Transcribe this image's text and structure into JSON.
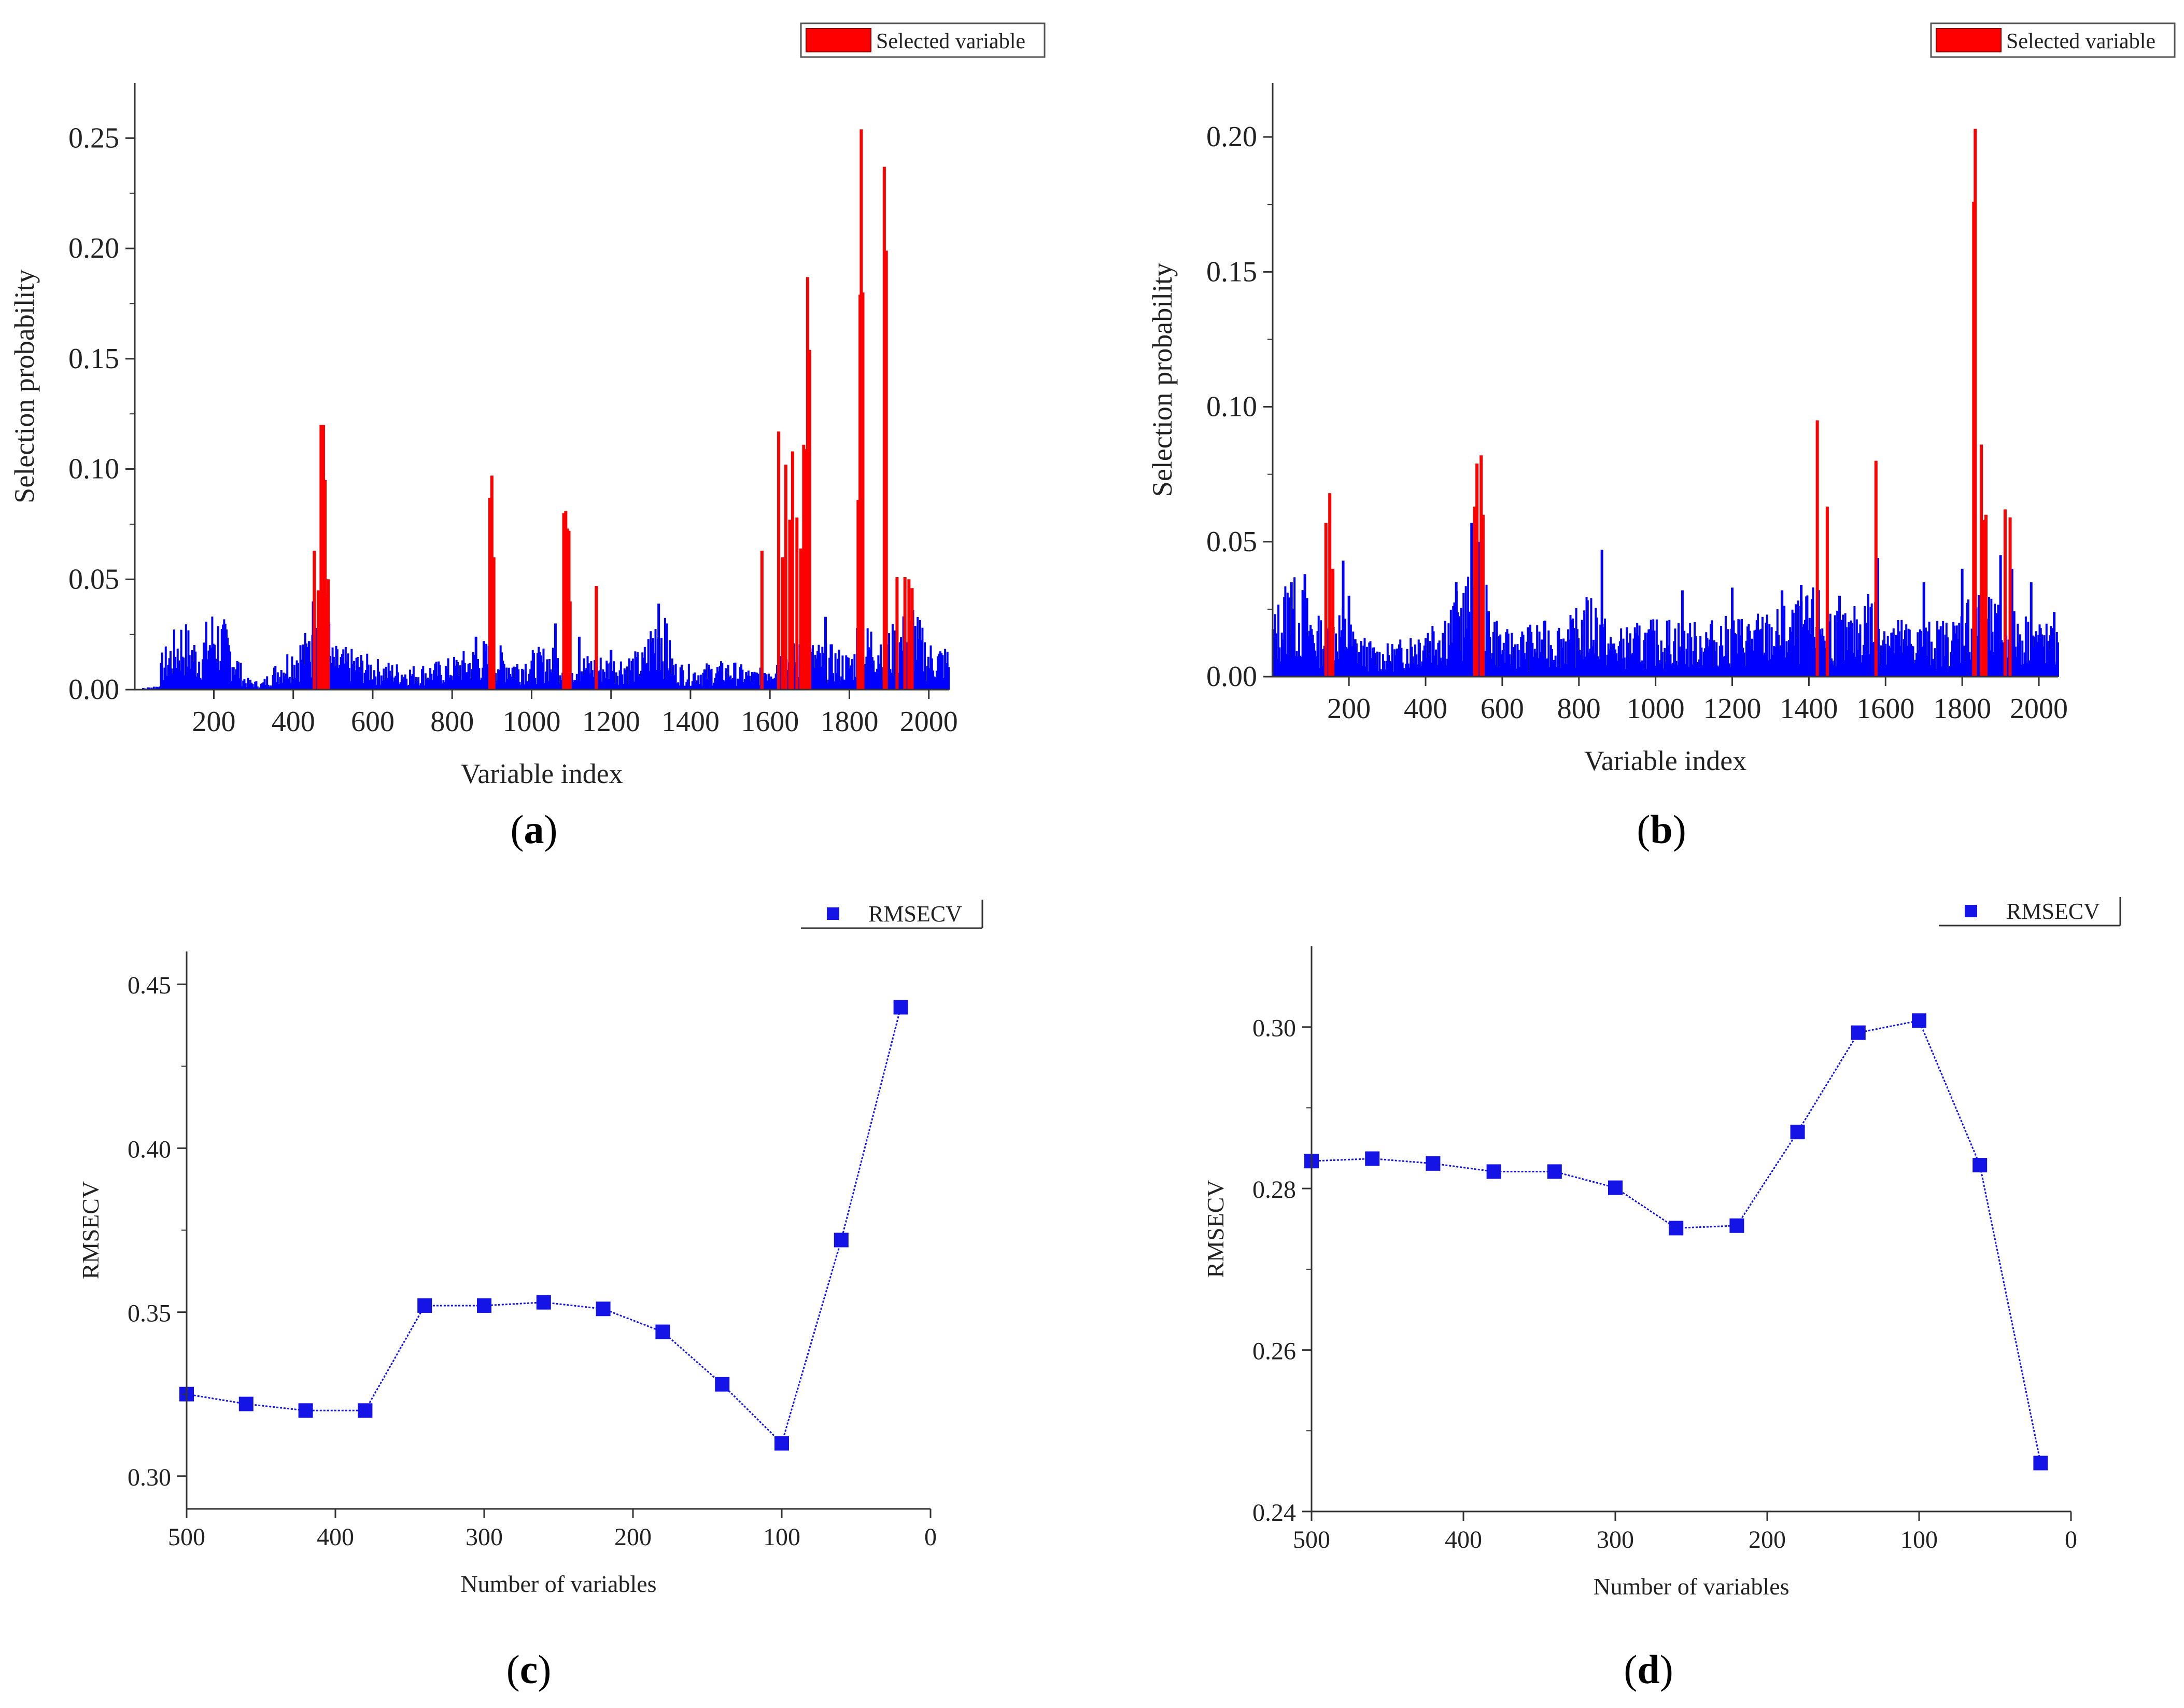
{
  "colors": {
    "base": "#0000ff",
    "selected": "#ff0000",
    "axis": "#333333",
    "marker": "#1414e6",
    "line": "#1414e6"
  },
  "panels": {
    "a": {
      "caption_open": "(",
      "caption_letter": "a",
      "caption_close": ")"
    },
    "b": {
      "caption_open": "(",
      "caption_letter": "b",
      "caption_close": ")"
    },
    "c": {
      "caption_open": "(",
      "caption_letter": "c",
      "caption_close": ")"
    },
    "d": {
      "caption_open": "(",
      "caption_letter": "d",
      "caption_close": ")"
    }
  },
  "chart_data": [
    {
      "id": "a",
      "type": "bar",
      "xlabel": "Variable index",
      "ylabel": "Selection probability",
      "legend": {
        "label": "Selected variable",
        "placement": "top-right"
      },
      "xlim": [
        1,
        2050
      ],
      "ylim": [
        0,
        0.275
      ],
      "xticks": [
        200,
        400,
        600,
        800,
        1000,
        1200,
        1400,
        1600,
        1800,
        2000
      ],
      "yticks": [
        0.0,
        0.05,
        0.1,
        0.15,
        0.2,
        0.25
      ],
      "ytick_labels": [
        "0.00",
        "0.05",
        "0.10",
        "0.15",
        "0.20",
        "0.25"
      ],
      "background_segments": [
        [
          1,
          0.0
        ],
        [
          60,
          0.002
        ],
        [
          70,
          0.015
        ],
        [
          120,
          0.03
        ],
        [
          160,
          0.02
        ],
        [
          200,
          0.035
        ],
        [
          240,
          0.025
        ],
        [
          280,
          0.005
        ],
        [
          320,
          0.003
        ],
        [
          360,
          0.012
        ],
        [
          400,
          0.02
        ],
        [
          440,
          0.025
        ],
        [
          500,
          0.018
        ],
        [
          560,
          0.016
        ],
        [
          620,
          0.012
        ],
        [
          700,
          0.01
        ],
        [
          780,
          0.012
        ],
        [
          860,
          0.018
        ],
        [
          900,
          0.02
        ],
        [
          960,
          0.014
        ],
        [
          1040,
          0.018
        ],
        [
          1100,
          0.015
        ],
        [
          1200,
          0.014
        ],
        [
          1280,
          0.016
        ],
        [
          1320,
          0.04
        ],
        [
          1360,
          0.012
        ],
        [
          1400,
          0.01
        ],
        [
          1500,
          0.012
        ],
        [
          1560,
          0.008
        ],
        [
          1620,
          0.018
        ],
        [
          1700,
          0.02
        ],
        [
          1760,
          0.018
        ],
        [
          1800,
          0.015
        ],
        [
          1860,
          0.03
        ],
        [
          1900,
          0.025
        ],
        [
          1960,
          0.035
        ],
        [
          2000,
          0.02
        ],
        [
          2050,
          0.018
        ]
      ],
      "spikes": [
        [
          440,
          0.022
        ],
        [
          450,
          0.04
        ],
        [
          460,
          0.028
        ],
        [
          470,
          0.036
        ],
        [
          480,
          0.024
        ],
        [
          490,
          0.03
        ],
        [
          860,
          0.024
        ],
        [
          880,
          0.022
        ],
        [
          1060,
          0.03
        ],
        [
          1120,
          0.024
        ],
        [
          1200,
          0.018
        ],
        [
          1320,
          0.039
        ],
        [
          1340,
          0.03
        ],
        [
          1640,
          0.058
        ],
        [
          1700,
          0.03
        ],
        [
          1740,
          0.033
        ],
        [
          1820,
          0.028
        ],
        [
          1920,
          0.035
        ],
        [
          1960,
          0.036
        ]
      ],
      "selected": [
        [
          453,
          0.063
        ],
        [
          463,
          0.045
        ],
        [
          470,
          0.12
        ],
        [
          476,
          0.12
        ],
        [
          480,
          0.095
        ],
        [
          485,
          0.043
        ],
        [
          488,
          0.05
        ],
        [
          895,
          0.087
        ],
        [
          900,
          0.097
        ],
        [
          905,
          0.06
        ],
        [
          1081,
          0.08
        ],
        [
          1086,
          0.081
        ],
        [
          1090,
          0.073
        ],
        [
          1094,
          0.072
        ],
        [
          1097,
          0.04
        ],
        [
          1163,
          0.047
        ],
        [
          1580,
          0.063
        ],
        [
          1622,
          0.117
        ],
        [
          1632,
          0.06
        ],
        [
          1640,
          0.102
        ],
        [
          1650,
          0.077
        ],
        [
          1657,
          0.108
        ],
        [
          1668,
          0.078
        ],
        [
          1678,
          0.064
        ],
        [
          1685,
          0.111
        ],
        [
          1690,
          0.109
        ],
        [
          1695,
          0.187
        ],
        [
          1700,
          0.154
        ],
        [
          1822,
          0.086
        ],
        [
          1827,
          0.179
        ],
        [
          1830,
          0.254
        ],
        [
          1834,
          0.18
        ],
        [
          1888,
          0.237
        ],
        [
          1893,
          0.199
        ],
        [
          1920,
          0.051
        ],
        [
          1940,
          0.051
        ],
        [
          1950,
          0.05
        ],
        [
          1958,
          0.046
        ]
      ]
    },
    {
      "id": "b",
      "type": "bar",
      "xlabel": "Variable index",
      "ylabel": "Selection probability",
      "legend": {
        "label": "Selected variable",
        "placement": "top-right"
      },
      "xlim": [
        1,
        2050
      ],
      "ylim": [
        0,
        0.22
      ],
      "xticks": [
        200,
        400,
        600,
        800,
        1000,
        1200,
        1400,
        1600,
        1800,
        2000
      ],
      "yticks": [
        0.0,
        0.05,
        0.1,
        0.15,
        0.2
      ],
      "ytick_labels": [
        "0.00",
        "0.05",
        "0.10",
        "0.15",
        "0.20"
      ],
      "background_segments": [
        [
          1,
          0.02
        ],
        [
          40,
          0.035
        ],
        [
          80,
          0.03
        ],
        [
          120,
          0.02
        ],
        [
          180,
          0.025
        ],
        [
          220,
          0.015
        ],
        [
          280,
          0.01
        ],
        [
          330,
          0.012
        ],
        [
          400,
          0.02
        ],
        [
          460,
          0.025
        ],
        [
          520,
          0.035
        ],
        [
          560,
          0.03
        ],
        [
          600,
          0.015
        ],
        [
          700,
          0.018
        ],
        [
          780,
          0.02
        ],
        [
          840,
          0.03
        ],
        [
          880,
          0.015
        ],
        [
          960,
          0.018
        ],
        [
          1040,
          0.02
        ],
        [
          1100,
          0.018
        ],
        [
          1200,
          0.02
        ],
        [
          1300,
          0.022
        ],
        [
          1380,
          0.025
        ],
        [
          1420,
          0.03
        ],
        [
          1500,
          0.02
        ],
        [
          1560,
          0.03
        ],
        [
          1620,
          0.02
        ],
        [
          1700,
          0.018
        ],
        [
          1780,
          0.02
        ],
        [
          1820,
          0.03
        ],
        [
          1880,
          0.025
        ],
        [
          1940,
          0.022
        ],
        [
          2000,
          0.02
        ],
        [
          2050,
          0.015
        ]
      ],
      "spikes": [
        [
          50,
          0.035
        ],
        [
          85,
          0.038
        ],
        [
          185,
          0.043
        ],
        [
          200,
          0.03
        ],
        [
          480,
          0.035
        ],
        [
          520,
          0.057
        ],
        [
          540,
          0.05
        ],
        [
          860,
          0.047
        ],
        [
          1070,
          0.032
        ],
        [
          1200,
          0.033
        ],
        [
          1330,
          0.032
        ],
        [
          1380,
          0.034
        ],
        [
          1480,
          0.03
        ],
        [
          1580,
          0.044
        ],
        [
          1700,
          0.035
        ],
        [
          1800,
          0.04
        ],
        [
          1900,
          0.045
        ],
        [
          1930,
          0.04
        ],
        [
          1980,
          0.035
        ],
        [
          2040,
          0.024
        ]
      ],
      "selected": [
        [
          140,
          0.057
        ],
        [
          150,
          0.068
        ],
        [
          158,
          0.04
        ],
        [
          528,
          0.063
        ],
        [
          534,
          0.079
        ],
        [
          545,
          0.082
        ],
        [
          550,
          0.06
        ],
        [
          1422,
          0.095
        ],
        [
          1448,
          0.063
        ],
        [
          1575,
          0.08
        ],
        [
          1830,
          0.176
        ],
        [
          1834,
          0.203
        ],
        [
          1850,
          0.086
        ],
        [
          1858,
          0.058
        ],
        [
          1862,
          0.06
        ],
        [
          1912,
          0.062
        ],
        [
          1925,
          0.059
        ]
      ]
    },
    {
      "id": "c",
      "type": "line",
      "xlabel": "Number of variables",
      "ylabel": "RMSECV",
      "legend": {
        "label": "RMSECV",
        "placement": "top-right"
      },
      "x_reversed": true,
      "xlim": [
        500,
        0
      ],
      "ylim": [
        0.29,
        0.46
      ],
      "xticks": [
        500,
        400,
        300,
        200,
        100,
        0
      ],
      "yticks": [
        0.3,
        0.35,
        0.4,
        0.45
      ],
      "ytick_labels": [
        "0.30",
        "0.35",
        "0.40",
        "0.45"
      ],
      "x": [
        500,
        460,
        420,
        380,
        340,
        300,
        260,
        220,
        180,
        140,
        100,
        60,
        20
      ],
      "values": [
        0.325,
        0.322,
        0.32,
        0.32,
        0.352,
        0.352,
        0.353,
        0.351,
        0.344,
        0.328,
        0.31,
        0.372,
        0.443
      ]
    },
    {
      "id": "d",
      "type": "line",
      "xlabel": "Number of variables",
      "ylabel": "RMSECV",
      "legend": {
        "label": "RMSECV",
        "placement": "top-right"
      },
      "x_reversed": true,
      "xlim": [
        500,
        0
      ],
      "ylim": [
        0.24,
        0.31
      ],
      "xticks": [
        500,
        400,
        300,
        200,
        100,
        0
      ],
      "yticks": [
        0.24,
        0.26,
        0.28,
        0.3
      ],
      "ytick_labels": [
        "0.24",
        "0.26",
        "0.28",
        "0.30"
      ],
      "x": [
        500,
        460,
        420,
        380,
        340,
        300,
        260,
        220,
        180,
        140,
        100,
        60,
        20
      ],
      "values": [
        0.2834,
        0.2837,
        0.2831,
        0.2821,
        0.2821,
        0.2801,
        0.2751,
        0.2754,
        0.287,
        0.2993,
        0.3008,
        0.2829,
        0.246
      ]
    }
  ]
}
